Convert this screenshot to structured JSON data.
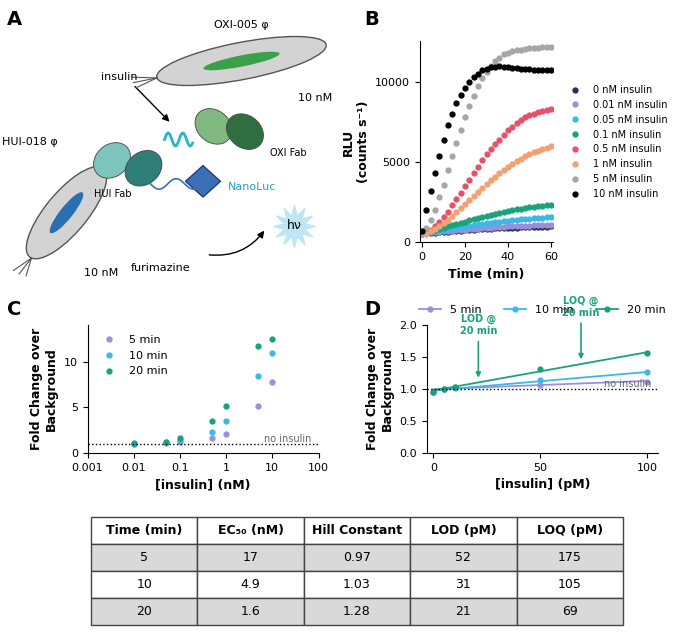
{
  "diagram": {
    "title": "A",
    "labels": {
      "oxi_phage": "OXI-005 φ",
      "oxi_conc": "10 nM",
      "hui_phage": "HUI-018 φ",
      "hui_conc": "10 nM",
      "insulin": "insulin",
      "oxi_fab": "OXI Fab",
      "hui_fab": "HUI Fab",
      "nanoluc": "NanoLuc",
      "substrate": "furimazine",
      "light": "hν"
    }
  },
  "chart_data": [
    {
      "title": "B",
      "type": "scatter",
      "xlabel": "Time (min)",
      "ylabel": "RLU\n(counts s⁻¹)",
      "x": [
        0,
        2,
        4,
        6,
        8,
        10,
        12,
        14,
        16,
        18,
        20,
        22,
        24,
        26,
        28,
        30,
        32,
        34,
        36,
        38,
        40,
        42,
        44,
        46,
        48,
        50,
        52,
        54,
        56,
        58,
        60
      ],
      "xlim": [
        -1,
        61
      ],
      "xticks": [
        0,
        20,
        40,
        60
      ],
      "ylim": [
        0,
        12500
      ],
      "yticks": [
        0,
        5000,
        10000
      ],
      "legend": "right",
      "marker": "o",
      "line_style": "none",
      "series": [
        {
          "name": "0 nM insulin",
          "color": "#1f2f6b",
          "values": [
            550,
            570,
            590,
            610,
            630,
            650,
            670,
            690,
            710,
            730,
            750,
            770,
            790,
            810,
            830,
            850,
            860,
            870,
            880,
            890,
            900,
            910,
            920,
            930,
            940,
            950,
            960,
            970,
            980,
            990,
            1000
          ]
        },
        {
          "name": "0.01 nM insulin",
          "color": "#9b8fd8",
          "values": [
            600,
            620,
            640,
            660,
            680,
            700,
            720,
            740,
            760,
            780,
            800,
            820,
            840,
            860,
            880,
            900,
            920,
            940,
            960,
            980,
            1000,
            1010,
            1020,
            1030,
            1040,
            1050,
            1060,
            1070,
            1080,
            1090,
            1100
          ]
        },
        {
          "name": "0.05 nM insulin",
          "color": "#3fb6e8",
          "values": [
            600,
            640,
            680,
            720,
            760,
            800,
            840,
            880,
            920,
            960,
            1000,
            1040,
            1080,
            1120,
            1160,
            1200,
            1240,
            1270,
            1300,
            1330,
            1360,
            1390,
            1420,
            1440,
            1460,
            1480,
            1500,
            1520,
            1540,
            1560,
            1580
          ]
        },
        {
          "name": "0.1 nM insulin",
          "color": "#1aa37a",
          "values": [
            600,
            650,
            700,
            780,
            850,
            920,
            1000,
            1080,
            1150,
            1230,
            1300,
            1380,
            1450,
            1520,
            1600,
            1660,
            1720,
            1780,
            1840,
            1900,
            1950,
            2000,
            2050,
            2100,
            2150,
            2180,
            2210,
            2240,
            2270,
            2300,
            2330
          ]
        },
        {
          "name": "0.5 nM insulin",
          "color": "#e8506a",
          "values": [
            500,
            600,
            800,
            1000,
            1300,
            1600,
            1900,
            2300,
            2700,
            3100,
            3500,
            3900,
            4300,
            4700,
            5100,
            5500,
            5800,
            6100,
            6400,
            6700,
            7000,
            7200,
            7400,
            7600,
            7800,
            7900,
            8000,
            8100,
            8200,
            8250,
            8300
          ]
        },
        {
          "name": "1 nM insulin",
          "color": "#f4a070",
          "values": [
            500,
            550,
            700,
            850,
            1000,
            1200,
            1400,
            1650,
            1900,
            2150,
            2400,
            2650,
            2900,
            3150,
            3400,
            3650,
            3900,
            4100,
            4300,
            4500,
            4700,
            4900,
            5050,
            5200,
            5350,
            5500,
            5600,
            5700,
            5800,
            5900,
            6000
          ]
        },
        {
          "name": "5 nM insulin",
          "color": "#a6a6a6",
          "values": [
            600,
            900,
            1400,
            2000,
            2800,
            3600,
            4500,
            5400,
            6200,
            7000,
            7800,
            8500,
            9100,
            9700,
            10200,
            10600,
            11000,
            11300,
            11500,
            11700,
            11800,
            11900,
            12000,
            12000,
            12050,
            12100,
            12100,
            12100,
            12150,
            12150,
            12150
          ]
        },
        {
          "name": "10 nM insulin",
          "color": "#000000",
          "values": [
            700,
            2000,
            3200,
            4300,
            5400,
            6400,
            7300,
            8000,
            8700,
            9200,
            9600,
            10000,
            10300,
            10500,
            10700,
            10800,
            10900,
            10900,
            10950,
            10900,
            10900,
            10850,
            10850,
            10800,
            10800,
            10800,
            10750,
            10750,
            10700,
            10700,
            10700
          ]
        }
      ]
    },
    {
      "title": "C",
      "type": "scatter",
      "log": "x",
      "xlabel": "[insulin] (nM)",
      "ylabel": "Fold Change over\nBackground",
      "x": [
        0.01,
        0.05,
        0.1,
        0.5,
        1,
        5,
        10
      ],
      "xlim": [
        0.001,
        100
      ],
      "xticks": [
        0.001,
        0.01,
        0.1,
        1,
        10,
        100
      ],
      "ylim": [
        0,
        14
      ],
      "yticks": [
        0,
        5,
        10
      ],
      "legend": "upper left",
      "marker": "o",
      "line_style": "none",
      "annotations": [
        {
          "text": "no insulin",
          "y": 1
        }
      ],
      "series": [
        {
          "name": "5 min",
          "color": "#9b8fd8",
          "values": [
            1.0,
            1.1,
            1.2,
            1.6,
            2.1,
            5.2,
            7.8
          ]
        },
        {
          "name": "10 min",
          "color": "#3fb6e8",
          "values": [
            1.0,
            1.2,
            1.4,
            2.3,
            3.5,
            8.5,
            11.0
          ]
        },
        {
          "name": "20 min",
          "color": "#1aa37a",
          "values": [
            1.05,
            1.25,
            1.6,
            3.5,
            5.2,
            11.7,
            12.5
          ]
        }
      ]
    },
    {
      "title": "D",
      "type": "scatter",
      "xlabel": "[insulin] (pM)",
      "ylabel": "Fold Change over\nBackground",
      "x": [
        0,
        5,
        10,
        50,
        100
      ],
      "xlim": [
        -3,
        105
      ],
      "xticks": [
        0,
        50,
        100
      ],
      "ylim": [
        0,
        2
      ],
      "yticks": [
        {
          "value": 0,
          "label": "0.0"
        },
        {
          "value": 0.5,
          "label": "0.5"
        },
        {
          "value": 1,
          "label": "1.0"
        },
        {
          "value": 1.5,
          "label": "1.5"
        },
        {
          "value": 2,
          "label": "2.0"
        }
      ],
      "legend": "top",
      "marker": "o",
      "line_style": "none",
      "annotations": [
        {
          "text": "no insulin",
          "y": 1
        },
        {
          "text": "LOD @\n20 min",
          "x": 21,
          "series": "20 min"
        },
        {
          "text": "LOQ @\n20 min",
          "x": 69,
          "series": "20 min"
        }
      ],
      "series": [
        {
          "name": "5 min",
          "color": "#9b8fd8",
          "values": [
            0.95,
            1.0,
            1.02,
            1.07,
            1.12
          ],
          "fit": {
            "x": [
              0,
              100
            ],
            "values": [
              1.0,
              1.13
            ]
          }
        },
        {
          "name": "10 min",
          "color": "#3fb6e8",
          "values": [
            0.95,
            1.0,
            1.03,
            1.14,
            1.27
          ],
          "fit": {
            "x": [
              0,
              100
            ],
            "values": [
              0.98,
              1.27
            ]
          }
        },
        {
          "name": "20 min",
          "color": "#1aa37a",
          "values": [
            0.95,
            1.0,
            1.04,
            1.31,
            1.57
          ],
          "fit": {
            "x": [
              0,
              100
            ],
            "values": [
              0.98,
              1.58
            ]
          }
        }
      ]
    }
  ],
  "table": {
    "columns": [
      "Time (min)",
      "EC₅₀ (nM)",
      "Hill Constant",
      "LOD (pM)",
      "LOQ (pM)"
    ],
    "rows": [
      [
        5,
        17,
        0.97,
        52,
        175
      ],
      [
        10,
        4.9,
        1.03,
        31,
        105
      ],
      [
        20,
        1.6,
        1.28,
        21,
        69
      ]
    ]
  }
}
